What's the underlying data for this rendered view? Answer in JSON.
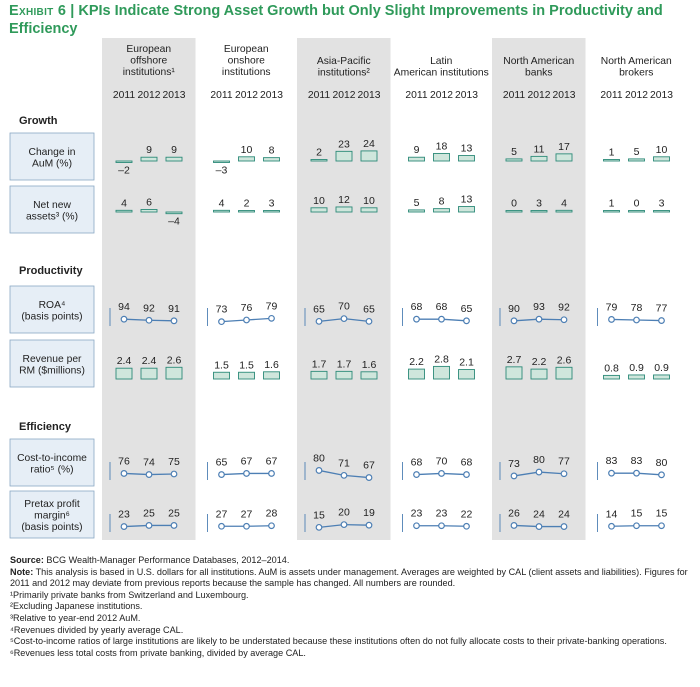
{
  "title": {
    "exhibit": "Exhibit 6",
    "separator": "|",
    "text": "KPIs Indicate Strong Asset Growth but Only Slight Improvements in Productivity and Efficiency"
  },
  "chart_data": {
    "type": "bar",
    "years": [
      "2011",
      "2012",
      "2013"
    ],
    "groups": [
      {
        "label": "European offshore institutions¹"
      },
      {
        "label": "European onshore institutions"
      },
      {
        "label": "Asia-Pacific institutions²"
      },
      {
        "label": "Latin American institutions"
      },
      {
        "label": "North American banks"
      },
      {
        "label": "North American brokers"
      }
    ],
    "sections": [
      {
        "label": "Growth",
        "metrics": [
          0,
          1
        ]
      },
      {
        "label": "Productivity",
        "metrics": [
          2,
          3
        ]
      },
      {
        "label": "Efficiency",
        "metrics": [
          4,
          5
        ]
      }
    ],
    "metrics": [
      {
        "label": "Change in AuM (%)",
        "kind": "bar",
        "values": [
          [
            -2,
            9,
            9
          ],
          [
            -3,
            10,
            8
          ],
          [
            2,
            23,
            24
          ],
          [
            9,
            18,
            13
          ],
          [
            5,
            11,
            17
          ],
          [
            1,
            5,
            10
          ]
        ]
      },
      {
        "label": "Net new assets³ (%)",
        "kind": "bar",
        "values": [
          [
            4,
            6,
            -4
          ],
          [
            4,
            2,
            3
          ],
          [
            10,
            12,
            10
          ],
          [
            5,
            8,
            13
          ],
          [
            0,
            3,
            4
          ],
          [
            1,
            0,
            3
          ]
        ]
      },
      {
        "label": "ROA⁴ (basis points)",
        "kind": "line",
        "values": [
          [
            94,
            92,
            91
          ],
          [
            73,
            76,
            79
          ],
          [
            65,
            70,
            65
          ],
          [
            68,
            68,
            65
          ],
          [
            90,
            93,
            92
          ],
          [
            79,
            78,
            77
          ]
        ]
      },
      {
        "label": "Revenue per RM ($millions)",
        "kind": "bar",
        "values": [
          [
            2.4,
            2.4,
            2.6
          ],
          [
            1.5,
            1.5,
            1.6
          ],
          [
            1.7,
            1.7,
            1.6
          ],
          [
            2.2,
            2.8,
            2.1
          ],
          [
            2.7,
            2.2,
            2.6
          ],
          [
            0.8,
            0.9,
            0.9
          ]
        ]
      },
      {
        "label": "Cost-to-income ratio⁵ (%)",
        "kind": "line",
        "values": [
          [
            76,
            74,
            75
          ],
          [
            65,
            67,
            67
          ],
          [
            80,
            71,
            67
          ],
          [
            68,
            70,
            68
          ],
          [
            73,
            80,
            77
          ],
          [
            83,
            83,
            80
          ]
        ]
      },
      {
        "label": "Pretax profit margin⁶ (basis points)",
        "kind": "line",
        "values": [
          [
            23,
            25,
            25
          ],
          [
            27,
            27,
            28
          ],
          [
            15,
            20,
            19
          ],
          [
            23,
            23,
            22
          ],
          [
            26,
            24,
            24
          ],
          [
            14,
            15,
            15
          ]
        ]
      }
    ],
    "colors": {
      "bar_fill": "#cfe6dc",
      "bar_stroke": "#2c8a78",
      "line": "#4d7fb4",
      "shade": "#e2e2e2",
      "label_box": "#e6eef6",
      "label_border": "#8aa8c4",
      "title": "#2f9a5a"
    }
  },
  "notes": {
    "source_label": "Source:",
    "source": "BCG Wealth-Manager Performance Databases, 2012–2014.",
    "note_label": "Note:",
    "note": "This analysis is based in U.S. dollars for all institutions. AuM is assets under management. Averages are weighted by CAL (client assets and liabilities). Figures for 2011 and 2012 may deviate from previous reports because the sample has changed. All numbers are rounded.",
    "footnotes": [
      "¹Primarily private banks from Switzerland and Luxembourg.",
      "²Excluding Japanese institutions.",
      "³Relative to year-end 2012 AuM.",
      "⁴Revenues divided by yearly average CAL.",
      "⁵Cost-to-income ratios of large institutions are likely to be understated because these institutions often do not fully allocate costs to their private-banking operations.",
      "⁶Revenues less total costs from private banking, divided by average CAL."
    ]
  }
}
